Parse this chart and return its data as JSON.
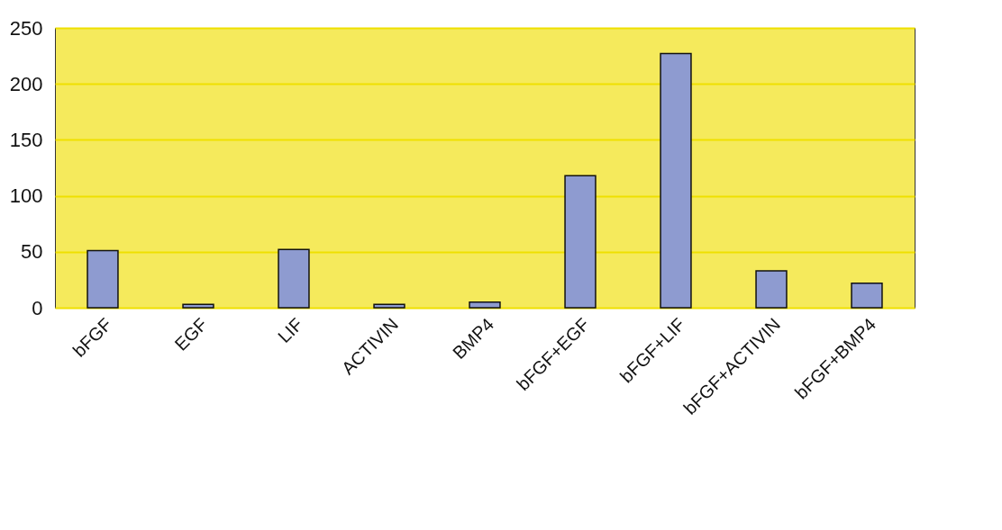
{
  "chart_data": {
    "type": "bar",
    "categories": [
      "bFGF",
      "EGF",
      "LIF",
      "ACTIVIN",
      "BMP4",
      "bFGF+EGF",
      "bFGF+LIF",
      "bFGF+ACTIVIN",
      "bFGF+BMP4"
    ],
    "values": [
      51,
      3,
      52,
      3,
      5,
      118,
      227,
      33,
      22
    ],
    "color": "#8e9bd0",
    "ylim": [
      0,
      250
    ],
    "yticks": [
      0,
      50,
      100,
      150,
      200,
      250
    ],
    "grid": "y"
  }
}
